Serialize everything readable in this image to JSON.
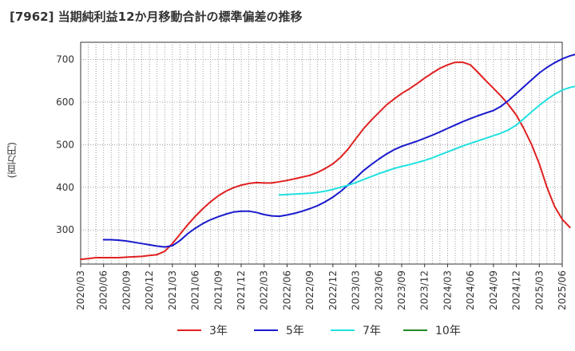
{
  "title": "[7962]  当期純利益12か月移動合計の標準偏差の推移",
  "chart_data": {
    "type": "line",
    "title": "[7962]  当期純利益12か月移動合計の標準偏差の推移",
    "ylabel": "(百万円)",
    "xlabel": "",
    "ylim": [
      220,
      740
    ],
    "yticks": [
      300,
      400,
      500,
      600,
      700
    ],
    "x_ticks": [
      "2020/03",
      "2020/06",
      "2020/09",
      "2020/12",
      "2021/03",
      "2021/06",
      "2021/09",
      "2021/12",
      "2022/03",
      "2022/06",
      "2022/09",
      "2022/12",
      "2023/03",
      "2023/06",
      "2023/09",
      "2023/12",
      "2024/03",
      "2024/06",
      "2024/09",
      "2024/12",
      "2025/03",
      "2025/06"
    ],
    "grid": true,
    "legend_position": "bottom",
    "series": [
      {
        "name": "3年",
        "color": "#e02020",
        "start": "2020/03",
        "values": [
          231,
          233,
          235,
          235,
          235,
          235,
          236,
          237,
          238,
          240,
          242,
          250,
          268,
          290,
          312,
          332,
          350,
          366,
          380,
          391,
          399,
          405,
          409,
          411,
          410,
          410,
          413,
          416,
          420,
          424,
          428,
          435,
          444,
          455,
          470,
          490,
          514,
          537,
          557,
          575,
          593,
          607,
          620,
          631,
          643,
          656,
          668,
          679,
          687,
          693,
          693,
          687,
          669,
          650,
          632,
          614,
          593,
          569,
          537,
          500,
          455,
          400,
          355,
          325,
          306
        ]
      },
      {
        "name": "5年",
        "color": "#1a1acd",
        "start": "2020/06",
        "values": [
          277,
          277,
          276,
          274,
          271,
          268,
          265,
          262,
          260,
          263,
          275,
          291,
          304,
          315,
          324,
          331,
          337,
          342,
          344,
          344,
          341,
          336,
          333,
          332,
          335,
          339,
          344,
          350,
          357,
          366,
          377,
          390,
          406,
          422,
          439,
          453,
          466,
          478,
          488,
          496,
          502,
          508,
          515,
          522,
          530,
          538,
          546,
          554,
          561,
          568,
          574,
          580,
          590,
          604,
          620,
          636,
          652,
          668,
          681,
          692,
          701,
          708,
          713,
          718,
          722,
          725
        ]
      },
      {
        "name": "7年",
        "color": "#22e0e0",
        "start": "2022/05",
        "values": [
          382,
          383,
          384,
          385,
          386,
          388,
          391,
          395,
          400,
          405,
          411,
          418,
          425,
          432,
          438,
          444,
          449,
          453,
          458,
          463,
          469,
          476,
          483,
          490,
          497,
          503,
          509,
          515,
          521,
          527,
          535,
          546,
          561,
          577,
          592,
          606,
          618,
          628,
          634,
          638,
          640,
          642,
          643,
          644
        ]
      },
      {
        "name": "10年",
        "color": "#228b22",
        "start": "2025/03",
        "values": []
      }
    ]
  }
}
